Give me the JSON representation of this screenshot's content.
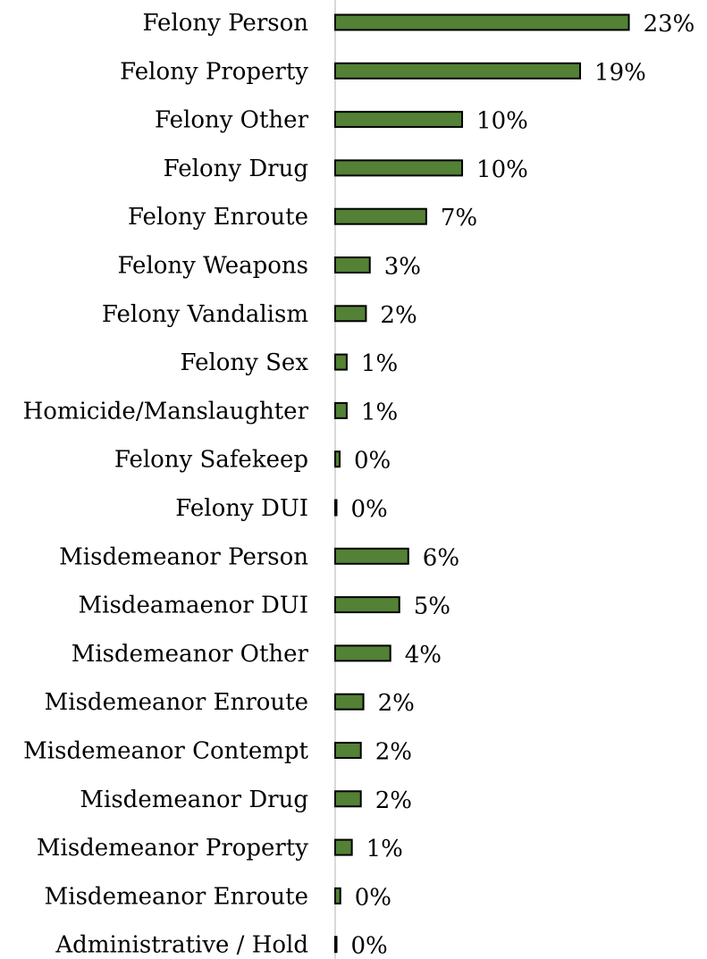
{
  "chart_data": {
    "type": "bar",
    "orientation": "horizontal",
    "categories": [
      "Felony Person",
      "Felony Property",
      "Felony Other",
      "Felony Drug",
      "Felony Enroute",
      "Felony Weapons",
      "Felony Vandalism",
      "Felony Sex",
      "Homicide/Manslaughter",
      "Felony Safekeep",
      "Felony DUI",
      "Misdemeanor Person",
      "Misdeamaenor DUI",
      "Misdemeanor Other",
      "Misdemeanor Enroute",
      "Misdemeanor Contempt",
      "Misdemeanor Drug",
      "Misdemeanor Property",
      "Misdemeanor Enroute",
      "Administrative / Hold"
    ],
    "values": [
      23,
      19,
      10,
      10,
      7,
      3,
      2,
      1,
      1,
      0,
      0,
      6,
      5,
      4,
      2,
      2,
      2,
      1,
      0,
      0
    ],
    "labels": [
      "23%",
      "19%",
      "10%",
      "10%",
      "7%",
      "3%",
      "2%",
      "1%",
      "1%",
      "0%",
      "0%",
      "6%",
      "5%",
      "4%",
      "2%",
      "2%",
      "2%",
      "1%",
      "0%",
      "0%"
    ],
    "bar_values_precise": [
      22.9,
      19.1,
      9.9,
      9.9,
      7.1,
      2.7,
      2.4,
      0.9,
      0.9,
      0.35,
      0.1,
      5.7,
      5.0,
      4.3,
      2.2,
      2.0,
      2.0,
      1.3,
      0.4,
      0.1
    ],
    "title": "",
    "xlabel": "",
    "ylabel": "",
    "xlim": [
      0,
      25
    ],
    "grid": false,
    "legend": "none",
    "bar_color": "#538135",
    "bar_edge_color": "#000000",
    "axis_color": "#d9d9d9"
  }
}
